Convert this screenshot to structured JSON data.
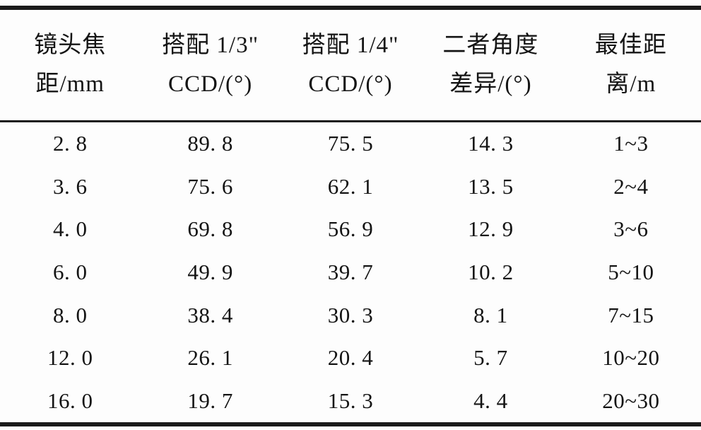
{
  "page": {
    "background": "#fdfdfd",
    "text_color": "#141414",
    "rule_color": "#1a1a1a"
  },
  "chart_data": {
    "type": "table",
    "columns": [
      "镜头焦距/mm",
      "搭配 1/3\" CCD/(°)",
      "搭配 1/4\" CCD/(°)",
      "二者角度差异/(°)",
      "最佳距离/m"
    ],
    "rows": [
      [
        2.8,
        89.8,
        75.5,
        14.3,
        "1~3"
      ],
      [
        3.6,
        75.6,
        62.1,
        13.5,
        "2~4"
      ],
      [
        4.0,
        69.8,
        56.9,
        12.9,
        "3~6"
      ],
      [
        6.0,
        49.9,
        39.7,
        10.2,
        "5~10"
      ],
      [
        8.0,
        38.4,
        30.3,
        8.1,
        "7~15"
      ],
      [
        12.0,
        26.1,
        20.4,
        5.7,
        "10~20"
      ],
      [
        16.0,
        19.7,
        15.3,
        4.4,
        "20~30"
      ]
    ]
  },
  "table": {
    "headers": [
      {
        "line1": "镜头焦",
        "line2": "距/mm"
      },
      {
        "line1": "搭配 1/3\"",
        "line2": "CCD/(°)"
      },
      {
        "line1": "搭配 1/4\"",
        "line2": "CCD/(°)"
      },
      {
        "line1": "二者角度",
        "line2": "差异/(°)"
      },
      {
        "line1": "最佳距",
        "line2": "离/m"
      }
    ],
    "rows": [
      [
        "2. 8",
        "89. 8",
        "75. 5",
        "14. 3",
        "1~3"
      ],
      [
        "3. 6",
        "75. 6",
        "62. 1",
        "13. 5",
        "2~4"
      ],
      [
        "4. 0",
        "69. 8",
        "56. 9",
        "12. 9",
        "3~6"
      ],
      [
        "6. 0",
        "49. 9",
        "39. 7",
        "10. 2",
        "5~10"
      ],
      [
        "8. 0",
        "38. 4",
        "30. 3",
        "8. 1",
        "7~15"
      ],
      [
        "12. 0",
        "26. 1",
        "20. 4",
        "5. 7",
        "10~20"
      ],
      [
        "16. 0",
        "19. 7",
        "15. 3",
        "4. 4",
        "20~30"
      ]
    ]
  }
}
